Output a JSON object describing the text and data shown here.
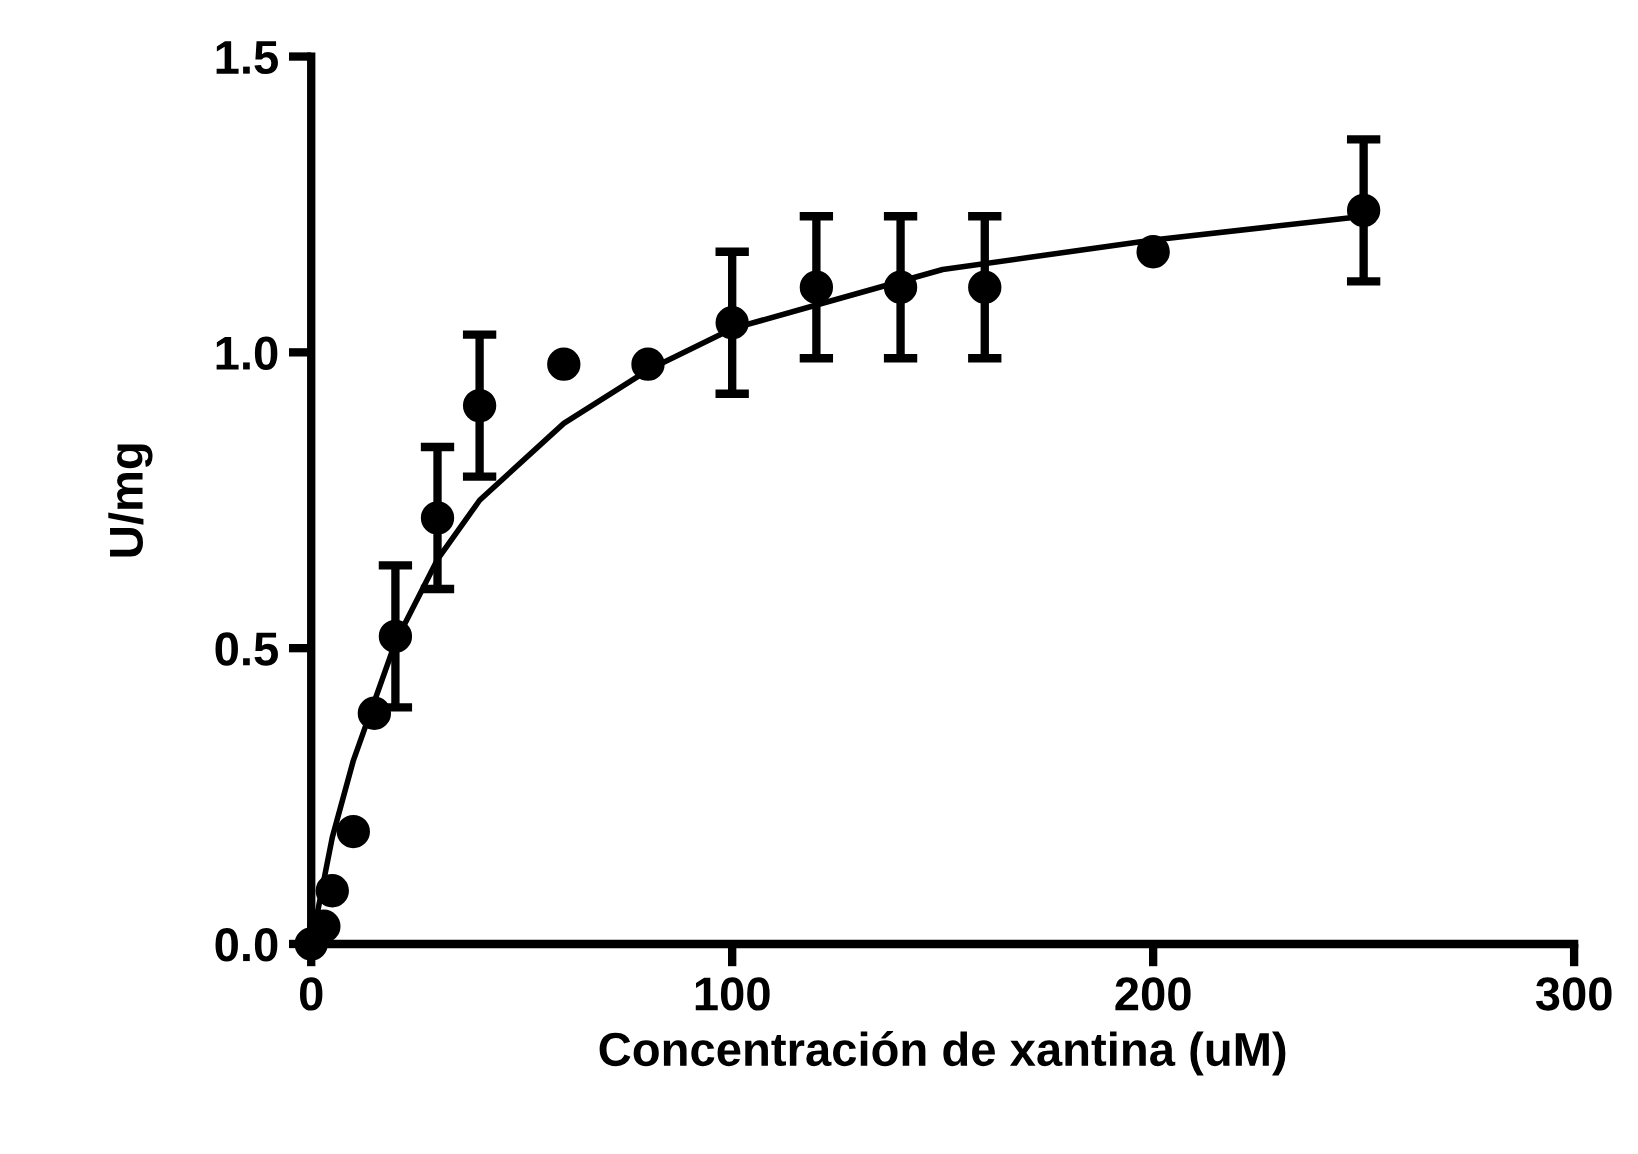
{
  "chart_data": {
    "type": "scatter",
    "xlabel": "Concentración de xantina (uM)",
    "ylabel": "U/mg",
    "xlim": [
      0,
      300
    ],
    "xticks": [
      0,
      100,
      200,
      300
    ],
    "ylim": [
      0,
      1.5
    ],
    "yticks": [
      {
        "value": 0,
        "label": "0.0"
      },
      {
        "value": 0.5,
        "label": "0.5"
      },
      {
        "value": 1,
        "label": "1.0"
      },
      {
        "value": 1.5,
        "label": "1.5"
      }
    ],
    "grid": false,
    "marker": "circle",
    "series": [
      {
        "color": "#000000",
        "x": [
          0,
          3,
          5,
          10,
          15,
          20,
          30,
          40,
          60,
          80,
          100,
          120,
          140,
          160,
          200,
          250
        ],
        "values": [
          0,
          0.03,
          0.09,
          0.19,
          0.39,
          0.52,
          0.72,
          0.91,
          0.98,
          0.98,
          1.05,
          1.11,
          1.11,
          1.11,
          1.17,
          1.24
        ],
        "errors": [
          null,
          null,
          null,
          null,
          null,
          0.12,
          0.12,
          0.12,
          null,
          null,
          0.12,
          0.12,
          0.12,
          0.12,
          null,
          0.12
        ]
      },
      {
        "type": "line",
        "color": "#000000",
        "marker": "none",
        "line_style": "solid",
        "x": [
          0,
          5,
          10,
          20,
          30,
          40,
          60,
          80,
          100,
          120,
          150,
          200,
          250
        ],
        "values": [
          0,
          0.18,
          0.31,
          0.51,
          0.65,
          0.75,
          0.88,
          0.97,
          1.04,
          1.08,
          1.14,
          1.19,
          1.23
        ]
      }
    ]
  }
}
